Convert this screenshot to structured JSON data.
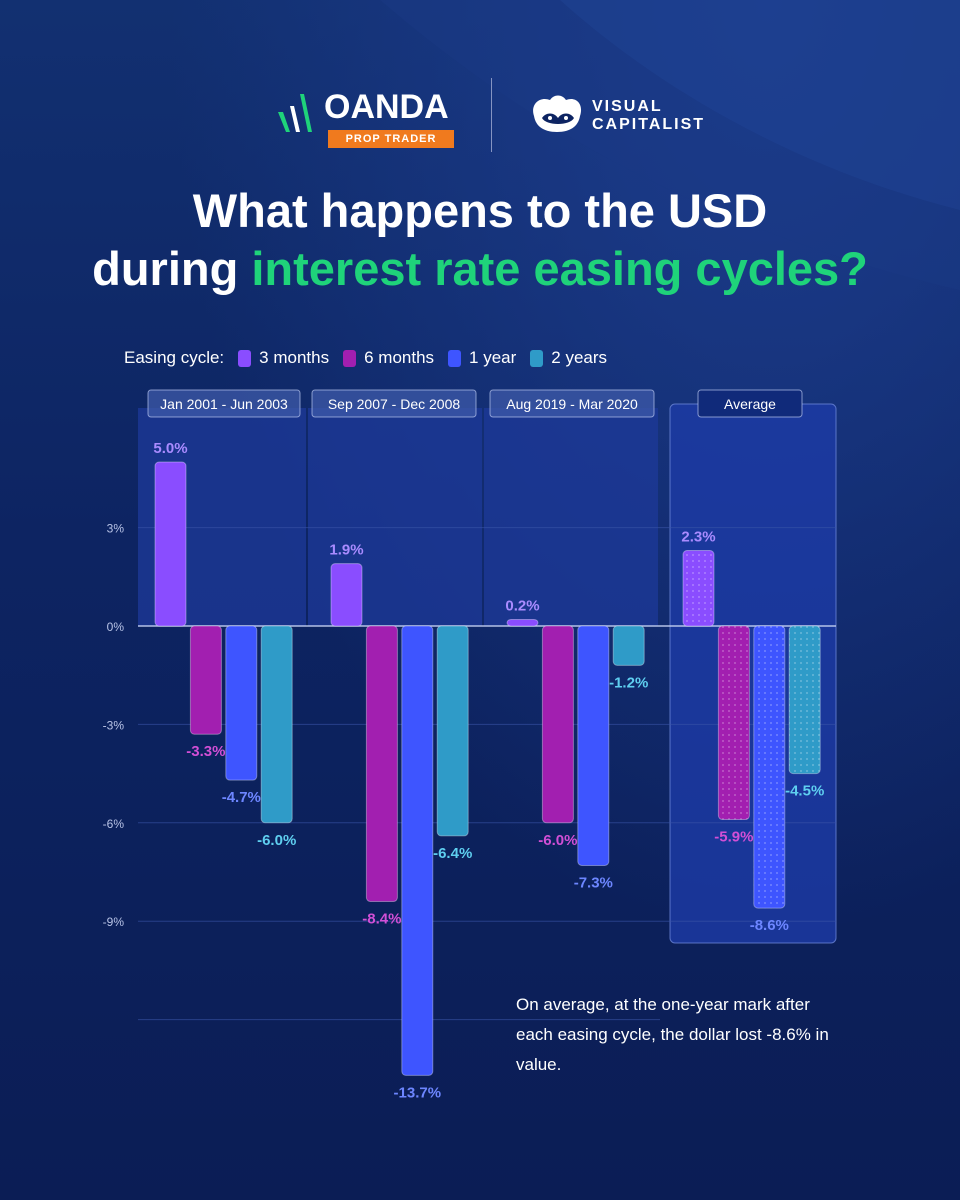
{
  "brand": {
    "oanda_word": "OANDA",
    "oanda_tagline": "PROP TRADER",
    "vc_word_line1": "VISUAL",
    "vc_word_line2": "CAPITALIST"
  },
  "title": {
    "line1": "What happens to the USD",
    "line2_plain": "during ",
    "line2_accent": "interest rate easing cycles?"
  },
  "colors": {
    "accent_green": "#1fd37a",
    "background": "#0c1f5c",
    "three_months": "#8a4dff",
    "six_months": "#a21fb0",
    "one_year": "#3e55ff",
    "two_years": "#2f9bc8",
    "three_months_label": "#a98bff",
    "six_months_label": "#d24fd6",
    "one_year_label": "#6d86ff",
    "two_years_label": "#5fcff0"
  },
  "note": "On average, at the one-year mark after each easing cycle, the dollar lost -8.6% in value.",
  "chart_data": {
    "type": "bar",
    "legend_title": "Easing cycle:",
    "legend_placement": "top",
    "categories": [
      "Jan 2001 - Jun 2003",
      "Sep 2007 - Dec 2008",
      "Aug 2019 - Mar 2020",
      "Average"
    ],
    "series": [
      {
        "name": "3 months",
        "values": [
          5.0,
          1.9,
          0.2,
          2.3
        ]
      },
      {
        "name": "6 months",
        "values": [
          -3.3,
          -8.4,
          -6.0,
          -5.9
        ]
      },
      {
        "name": "1 year",
        "values": [
          -4.7,
          -13.7,
          -7.3,
          -8.6
        ]
      },
      {
        "name": "2 years",
        "values": [
          -6.0,
          -6.4,
          -1.2,
          -4.5
        ]
      }
    ],
    "value_labels": [
      [
        "5.0%",
        "-3.3%",
        "-4.7%",
        "-6.0%"
      ],
      [
        "1.9%",
        "-8.4%",
        "-13.7%",
        "-6.4%"
      ],
      [
        "0.2%",
        "-6.0%",
        "-7.3%",
        "-1.2%"
      ],
      [
        "2.3%",
        "-5.9%",
        "-8.6%",
        "-4.5%"
      ]
    ],
    "y_ticks": [
      3,
      0,
      -3,
      -6,
      -9
    ],
    "y_tick_labels": [
      "3%",
      "0%",
      "-3%",
      "-6%",
      "-9%"
    ],
    "ylim": [
      -14,
      6
    ],
    "grid": true,
    "unit": "%"
  }
}
